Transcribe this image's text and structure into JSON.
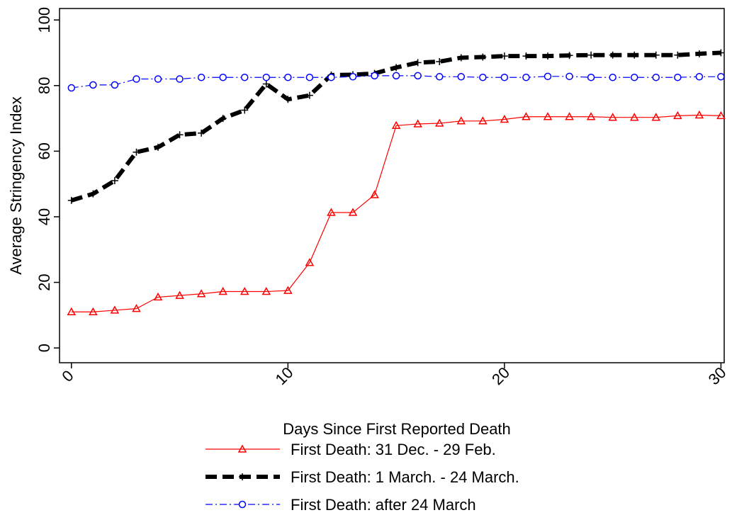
{
  "chart_data": {
    "type": "line",
    "x": [
      0,
      1,
      2,
      3,
      4,
      5,
      6,
      7,
      8,
      9,
      10,
      11,
      12,
      13,
      14,
      15,
      16,
      17,
      18,
      19,
      20,
      21,
      22,
      23,
      24,
      25,
      26,
      27,
      28,
      29,
      30
    ],
    "xlabel": "Days Since First Reported Death",
    "ylabel": "Average Stringency Index",
    "xlim": [
      -0.55,
      30.15
    ],
    "ylim": [
      -4.5,
      103.5
    ],
    "xticks": [
      0,
      10,
      20,
      30
    ],
    "yticks": [
      0,
      20,
      40,
      60,
      80,
      100
    ],
    "grid": false,
    "legend": "bottom",
    "series": [
      {
        "name": "First Death: 31 Dec. - 29 Feb.",
        "color": "#ff0000",
        "values": [
          11,
          11,
          11.5,
          12,
          15.5,
          16,
          16.5,
          17.2,
          17.2,
          17.2,
          17.5,
          26,
          41.3,
          41.3,
          46.7,
          67.8,
          68.3,
          68.5,
          69.2,
          69.2,
          69.7,
          70.5,
          70.5,
          70.5,
          70.5,
          70.3,
          70.3,
          70.3,
          70.8,
          71,
          70.8
        ]
      },
      {
        "name": "First Death: 1 March. - 24 March.",
        "color": "#000000",
        "values": [
          45,
          47,
          51,
          59.7,
          61.2,
          65,
          65.5,
          70,
          72.5,
          80.5,
          75.8,
          77,
          83.2,
          83.3,
          83.7,
          85.5,
          87,
          87.3,
          88.5,
          88.7,
          89,
          89,
          89,
          89.2,
          89.3,
          89.3,
          89.3,
          89.3,
          89.3,
          89.7,
          90
        ]
      },
      {
        "name": "First Death: after 24 March",
        "color": "#0000ff",
        "values": [
          79.3,
          80.2,
          80.2,
          82,
          82,
          82,
          82.5,
          82.5,
          82.5,
          82.5,
          82.5,
          82.5,
          82.5,
          82.7,
          83,
          83,
          83,
          82.7,
          82.7,
          82.5,
          82.5,
          82.5,
          82.8,
          82.8,
          82.5,
          82.5,
          82.5,
          82.5,
          82.5,
          82.7,
          82.7
        ]
      }
    ]
  }
}
